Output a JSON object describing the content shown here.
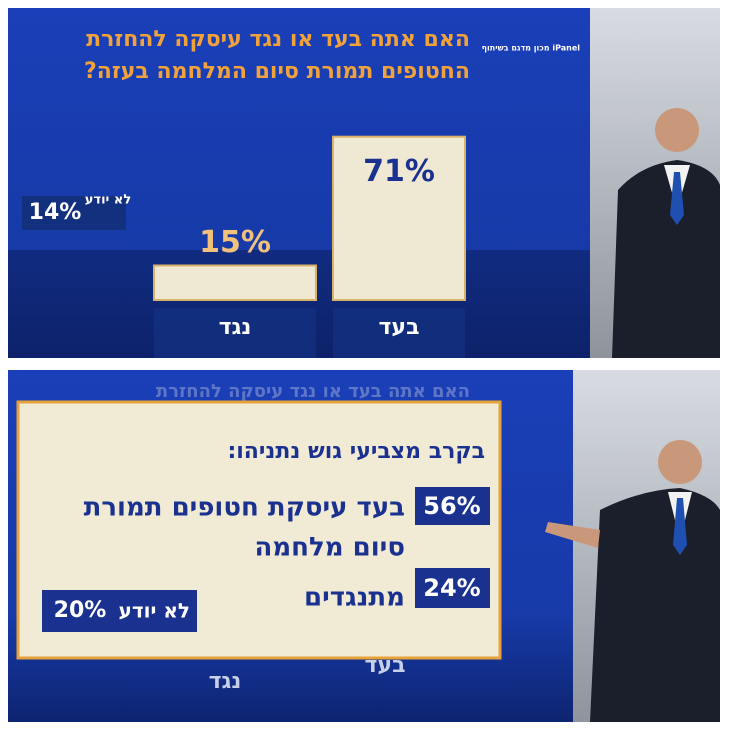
{
  "chart_data": {
    "type": "bar",
    "title": [
      "האם אתה בעד או נגד עיסקה להחזרת",
      "החטופים תמורת סיום המלחמה בעזה?"
    ],
    "source": "iPanel מכון מדגם בשיתוף",
    "categories": [
      "בעד",
      "נגד"
    ],
    "values": [
      71,
      15
    ],
    "value_labels": [
      "71%",
      "15%"
    ],
    "color": "#efe8d2",
    "dont_know": {
      "label": "לא יודע",
      "value": 14,
      "value_label": "14%"
    }
  },
  "panel": {
    "faded_title": "האם אתה בעד או נגד עיסקה להחזרת",
    "header": "בקרב מצביעי גוש נתניהו:",
    "items": [
      {
        "value": "56%",
        "lines": [
          "בעד עיסקת חטופים תמורת",
          "סיום מלחמה"
        ]
      },
      {
        "value": "24%",
        "lines": [
          "מתנגדים"
        ]
      }
    ],
    "dont_know": {
      "value": "20%",
      "label": "לא יודע"
    },
    "categories": [
      "בעד",
      "נגד"
    ]
  }
}
